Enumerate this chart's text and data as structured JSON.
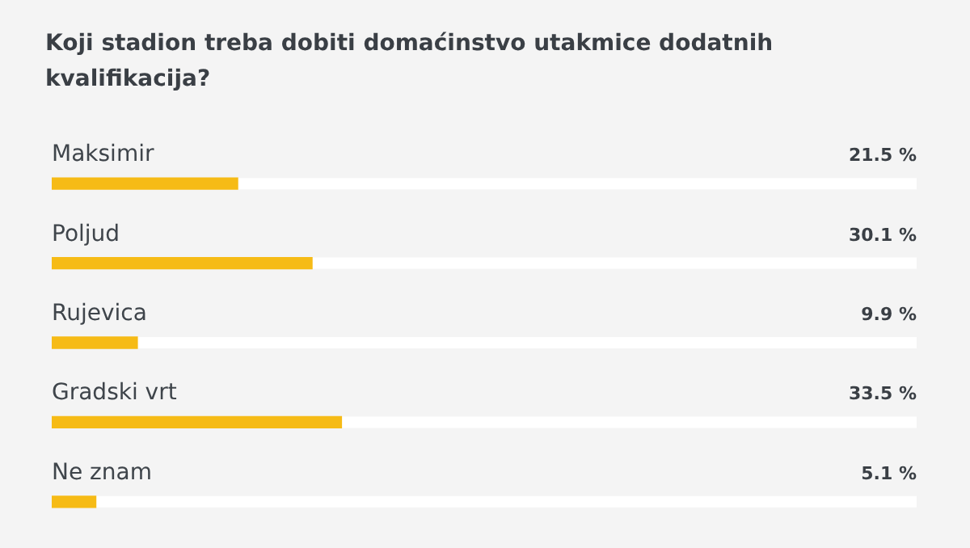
{
  "chart_data": {
    "type": "bar",
    "orientation": "horizontal",
    "title": "Koji stadion treba dobiti domaćinstvo utakmice dodatnih kvalifikacija?",
    "categories": [
      "Maksimir",
      "Poljud",
      "Rujevica",
      "Gradski vrt",
      "Ne znam"
    ],
    "values": [
      21.5,
      30.1,
      9.9,
      33.5,
      5.1
    ],
    "value_labels": [
      "21.5 %",
      "30.1 %",
      "9.9 %",
      "33.5 %",
      "5.1 %"
    ],
    "color": "#f6bb16",
    "xlim": [
      0,
      100
    ]
  }
}
